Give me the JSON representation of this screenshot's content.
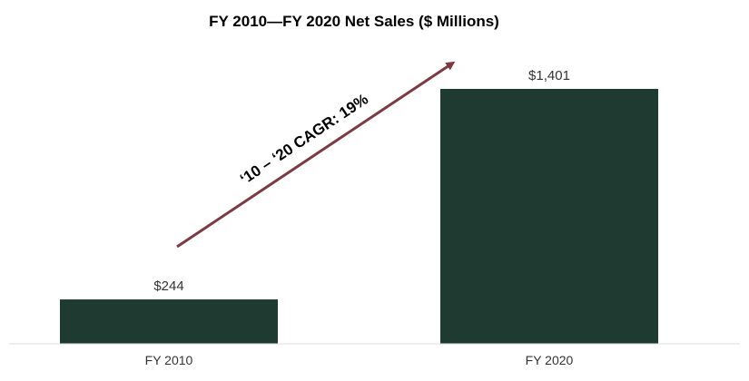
{
  "chart_data": {
    "type": "bar",
    "title": "FY 2010—FY 2020 Net Sales ($ Millions)",
    "categories": [
      "FY 2010",
      "FY 2020"
    ],
    "values": [
      244,
      1401
    ],
    "value_labels": [
      "$244",
      "$1,401"
    ],
    "xlabel": "",
    "ylabel": "",
    "ylim": [
      0,
      1401
    ],
    "grid": false,
    "bar_color": "#1e3a31",
    "annotation": {
      "text": "‘10 – ‘20 CAGR: 19%",
      "arrow_color": "#7a3b43"
    }
  }
}
